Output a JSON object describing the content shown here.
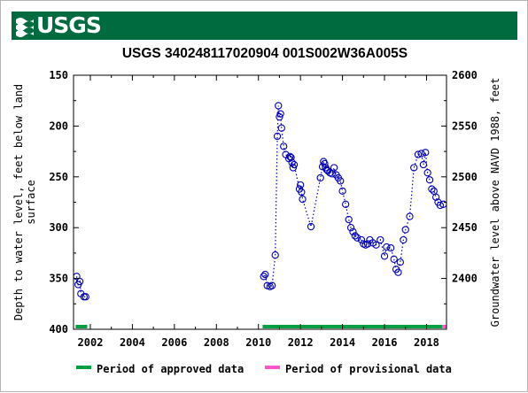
{
  "header": {
    "logo_text": "USGS",
    "banner_color": "#006b3f"
  },
  "chart_data": {
    "type": "scatter",
    "title": "USGS 340248117020904 001S002W36A005S",
    "xlabel": "",
    "ylabel_left": "Depth to water level, feet below land surface",
    "ylabel_left_lines": [
      "Depth to water level, feet below land",
      "surface"
    ],
    "ylabel_right": "Groundwater level above NAVD 1988, feet",
    "xlim": [
      2001.2,
      2018.95
    ],
    "ylim_left": [
      400,
      150
    ],
    "ylim_right": [
      2350,
      2600
    ],
    "x_ticks": [
      2002,
      2004,
      2006,
      2008,
      2010,
      2012,
      2014,
      2016,
      2018
    ],
    "x_tick_labels": [
      "2002",
      "2004",
      "2006",
      "2008",
      "2010",
      "2012",
      "2014",
      "2016",
      "2018"
    ],
    "y_ticks_left": [
      150,
      200,
      250,
      300,
      350,
      400
    ],
    "y_tick_labels_left": [
      "150",
      "200",
      "250",
      "300",
      "350",
      "400"
    ],
    "y_ticks_right": [
      2400,
      2450,
      2500,
      2550,
      2600
    ],
    "y_tick_labels_right": [
      "2400",
      "2450",
      "2500",
      "2550",
      "2600"
    ],
    "grid": false,
    "marker_color": "#0000bb",
    "line_style": "dotted",
    "series": [
      {
        "segment": 1,
        "points": [
          [
            2001.35,
            348
          ],
          [
            2001.42,
            356
          ],
          [
            2001.5,
            353
          ],
          [
            2001.55,
            365
          ],
          [
            2001.7,
            368
          ],
          [
            2001.78,
            368
          ]
        ]
      },
      {
        "segment": 2,
        "points": [
          [
            2010.25,
            348
          ],
          [
            2010.32,
            346
          ],
          [
            2010.42,
            357
          ],
          [
            2010.55,
            358
          ],
          [
            2010.65,
            357
          ],
          [
            2010.8,
            327
          ],
          [
            2010.9,
            210
          ],
          [
            2010.95,
            180
          ],
          [
            2011.0,
            191
          ],
          [
            2011.05,
            188
          ],
          [
            2011.1,
            202
          ],
          [
            2011.2,
            220
          ],
          [
            2011.3,
            228
          ],
          [
            2011.45,
            232
          ],
          [
            2011.5,
            230
          ],
          [
            2011.55,
            231
          ],
          [
            2011.6,
            236
          ],
          [
            2011.65,
            241
          ],
          [
            2011.7,
            238
          ],
          [
            2011.95,
            262
          ],
          [
            2012.0,
            258
          ],
          [
            2012.05,
            265
          ],
          [
            2012.1,
            272
          ],
          [
            2012.5,
            299
          ],
          [
            2012.95,
            251
          ],
          [
            2013.05,
            240
          ],
          [
            2013.1,
            235
          ],
          [
            2013.15,
            237
          ],
          [
            2013.2,
            241
          ],
          [
            2013.25,
            243
          ],
          [
            2013.3,
            244
          ],
          [
            2013.4,
            246
          ],
          [
            2013.5,
            247
          ],
          [
            2013.6,
            241
          ],
          [
            2013.7,
            248
          ],
          [
            2013.8,
            251
          ],
          [
            2013.9,
            254
          ],
          [
            2014.0,
            264
          ],
          [
            2014.15,
            277
          ],
          [
            2014.3,
            292
          ],
          [
            2014.4,
            300
          ],
          [
            2014.5,
            304
          ],
          [
            2014.6,
            308
          ],
          [
            2014.7,
            310
          ],
          [
            2014.9,
            312
          ],
          [
            2015.0,
            316
          ],
          [
            2015.1,
            317
          ],
          [
            2015.2,
            316
          ],
          [
            2015.3,
            312
          ],
          [
            2015.45,
            315
          ],
          [
            2015.6,
            317
          ],
          [
            2015.8,
            312
          ],
          [
            2016.0,
            328
          ],
          [
            2016.1,
            319
          ],
          [
            2016.3,
            320
          ],
          [
            2016.45,
            331
          ],
          [
            2016.55,
            341
          ],
          [
            2016.65,
            344
          ],
          [
            2016.75,
            334
          ],
          [
            2016.9,
            312
          ],
          [
            2017.0,
            302
          ],
          [
            2017.2,
            289
          ],
          [
            2017.4,
            241
          ],
          [
            2017.6,
            228
          ],
          [
            2017.75,
            227
          ],
          [
            2017.85,
            238
          ],
          [
            2017.95,
            226
          ],
          [
            2018.05,
            246
          ],
          [
            2018.15,
            253
          ],
          [
            2018.25,
            262
          ],
          [
            2018.35,
            264
          ],
          [
            2018.45,
            270
          ],
          [
            2018.55,
            275
          ],
          [
            2018.65,
            278
          ],
          [
            2018.8,
            277
          ]
        ]
      }
    ],
    "approval_periods": [
      {
        "status": "approved",
        "start": 2001.3,
        "end": 2001.85
      },
      {
        "status": "approved",
        "start": 2010.2,
        "end": 2018.75
      },
      {
        "status": "provisional",
        "start": 2018.75,
        "end": 2018.95
      }
    ],
    "legend": {
      "placement": "bottom",
      "items": [
        {
          "label": "Period of approved data",
          "color": "#00a040"
        },
        {
          "label": "Period of provisional data",
          "color": "#ff55cc"
        }
      ]
    }
  }
}
